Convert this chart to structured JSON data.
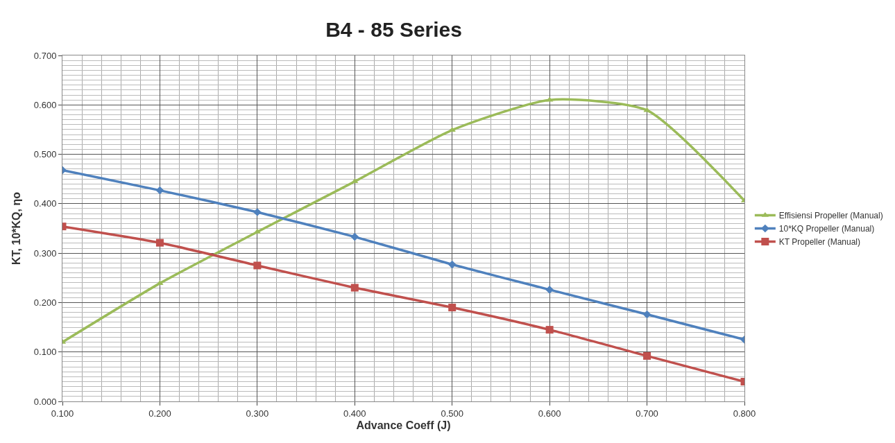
{
  "chart_data": {
    "type": "line",
    "title": "B4 - 85 Series",
    "xlabel": "Advance Coeff (J)",
    "ylabel": "KT, 10*KQ, ηo",
    "x": [
      0.1,
      0.2,
      0.3,
      0.4,
      0.5,
      0.6,
      0.7,
      0.8
    ],
    "series": [
      {
        "name": "Effisiensi Propeller (Manual)",
        "color": "#9bbb59",
        "marker": "triangle",
        "values": [
          0.12,
          0.239,
          0.343,
          0.445,
          0.549,
          0.61,
          0.589,
          0.406
        ]
      },
      {
        "name": "10*KQ Propeller (Manual)",
        "color": "#4f81bd",
        "marker": "diamond",
        "values": [
          0.468,
          0.427,
          0.383,
          0.333,
          0.277,
          0.226,
          0.176,
          0.125
        ]
      },
      {
        "name": "KT Propeller (Manual)",
        "color": "#c0504d",
        "marker": "square",
        "values": [
          0.354,
          0.321,
          0.275,
          0.23,
          0.19,
          0.145,
          0.092,
          0.04
        ]
      }
    ],
    "xlim": [
      0.1,
      0.8
    ],
    "xticks": [
      {
        "value": 0.1,
        "label": "0.100"
      },
      {
        "value": 0.2,
        "label": "0.200"
      },
      {
        "value": 0.3,
        "label": "0.300"
      },
      {
        "value": 0.4,
        "label": "0.400"
      },
      {
        "value": 0.5,
        "label": "0.500"
      },
      {
        "value": 0.6,
        "label": "0.600"
      },
      {
        "value": 0.7,
        "label": "0.700"
      },
      {
        "value": 0.8,
        "label": "0.800"
      }
    ],
    "ylim": [
      0,
      0.7
    ],
    "yticks": [
      {
        "value": 0,
        "label": "0.000"
      },
      {
        "value": 0.1,
        "label": "0.100"
      },
      {
        "value": 0.2,
        "label": "0.200"
      },
      {
        "value": 0.3,
        "label": "0.300"
      },
      {
        "value": 0.4,
        "label": "0.400"
      },
      {
        "value": 0.5,
        "label": "0.500"
      },
      {
        "value": 0.6,
        "label": "0.600"
      },
      {
        "value": 0.7,
        "label": "0.700"
      }
    ],
    "grid": true,
    "legend": "right",
    "line_style": "solid"
  }
}
